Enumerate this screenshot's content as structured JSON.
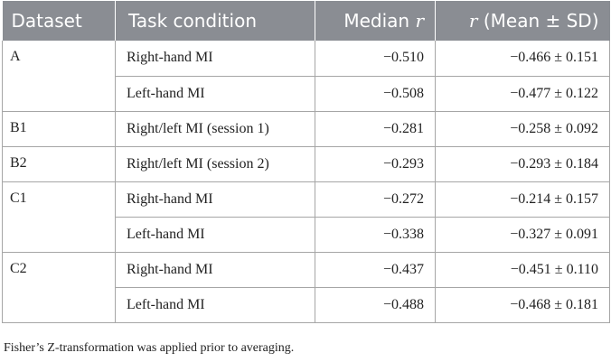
{
  "table": {
    "headers": {
      "dataset": "Dataset",
      "task": "Task condition",
      "median_prefix": "Median ",
      "median_var": "r",
      "mean_var": "r",
      "mean_suffix": " (Mean ± SD)"
    },
    "groups": [
      {
        "dataset": "A",
        "rows": [
          {
            "task": "Right-hand MI",
            "median": "−0.510",
            "mean_sd": "−0.466 ± 0.151"
          },
          {
            "task": "Left-hand MI",
            "median": "−0.508",
            "mean_sd": "−0.477 ± 0.122"
          }
        ]
      },
      {
        "dataset": "B1",
        "rows": [
          {
            "task": "Right/left MI (session 1)",
            "median": "−0.281",
            "mean_sd": "−0.258 ± 0.092"
          }
        ]
      },
      {
        "dataset": "B2",
        "rows": [
          {
            "task": "Right/left MI (session 2)",
            "median": "−0.293",
            "mean_sd": "−0.293 ± 0.184"
          }
        ]
      },
      {
        "dataset": "C1",
        "rows": [
          {
            "task": "Right-hand MI",
            "median": "−0.272",
            "mean_sd": "−0.214 ± 0.157"
          },
          {
            "task": "Left-hand MI",
            "median": "−0.338",
            "mean_sd": "−0.327 ± 0.091"
          }
        ]
      },
      {
        "dataset": "C2",
        "rows": [
          {
            "task": "Right-hand MI",
            "median": "−0.437",
            "mean_sd": "−0.451 ± 0.110"
          },
          {
            "task": "Left-hand MI",
            "median": "−0.488",
            "mean_sd": "−0.468 ± 0.181"
          }
        ]
      }
    ]
  },
  "footnote": "Fisher’s Z-transformation was applied prior to averaging."
}
